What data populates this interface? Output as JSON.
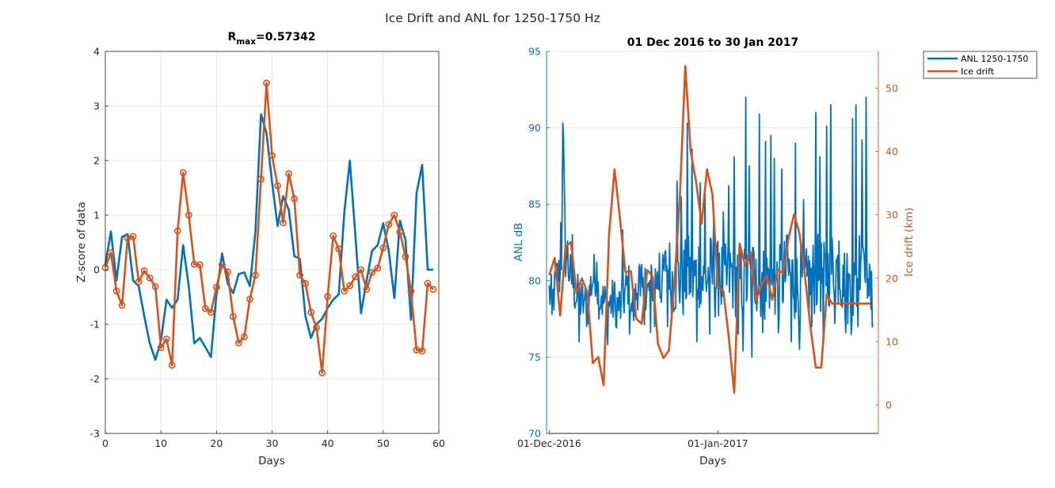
{
  "figure": {
    "suptitle": "Ice Drift and ANL for 1250-1750 Hz"
  },
  "colors": {
    "blue": "#0072BD",
    "orange": "#D95319",
    "grid": "#e0e0e0",
    "axis": "#262626"
  },
  "chart_data": [
    {
      "type": "line",
      "title_main": "R",
      "title_sub": "max",
      "title_rest": "=0.57342",
      "xlabel": "Days",
      "ylabel": "Z-score of data",
      "xlim": [
        0,
        60
      ],
      "ylim": [
        -3,
        4
      ],
      "xticks": [
        0,
        10,
        20,
        30,
        40,
        50,
        60
      ],
      "yticks": [
        -3,
        -2,
        -1,
        0,
        1,
        2,
        3,
        4
      ],
      "grid": true,
      "series": [
        {
          "color": "blue",
          "markers": false,
          "x": [
            0,
            1,
            2,
            3,
            4,
            5,
            6,
            7,
            8,
            9,
            10,
            11,
            12,
            13,
            14,
            15,
            16,
            17,
            18,
            19,
            20,
            21,
            22,
            23,
            24,
            25,
            26,
            27,
            28,
            29,
            30,
            31,
            32,
            33,
            34,
            35,
            36,
            37,
            38,
            39,
            40,
            41,
            42,
            43,
            44,
            45,
            46,
            47,
            48,
            49,
            50,
            51,
            52,
            53,
            54,
            55,
            56,
            57,
            58,
            59
          ],
          "y": [
            0.1,
            0.7,
            -0.2,
            0.6,
            0.65,
            -0.2,
            -0.3,
            -0.85,
            -1.35,
            -1.65,
            -1.3,
            -0.55,
            -0.7,
            -0.55,
            0.45,
            -0.3,
            -1.35,
            -1.25,
            -1.42,
            -1.6,
            -0.45,
            0.3,
            -0.25,
            -0.43,
            -0.08,
            -0.05,
            -0.3,
            0.7,
            2.85,
            2.5,
            1.6,
            0.8,
            1.35,
            1.1,
            0.25,
            0.2,
            -0.85,
            -1.25,
            -1.0,
            -0.9,
            -0.7,
            -0.55,
            -0.45,
            1.05,
            2.0,
            0.6,
            -0.8,
            -0.2,
            0.35,
            0.45,
            0.85,
            0.35,
            -0.52,
            0.9,
            0.55,
            -0.92,
            1.4,
            1.92,
            0.0,
            0.0
          ]
        },
        {
          "color": "orange",
          "markers": true,
          "x": [
            0,
            1,
            2,
            3,
            4,
            5,
            6,
            7,
            8,
            9,
            10,
            11,
            12,
            13,
            14,
            15,
            16,
            17,
            18,
            19,
            20,
            21,
            22,
            23,
            24,
            25,
            26,
            27,
            28,
            29,
            30,
            31,
            32,
            33,
            34,
            35,
            36,
            37,
            38,
            39,
            40,
            41,
            42,
            43,
            44,
            45,
            46,
            47,
            48,
            49,
            50,
            51,
            52,
            53,
            54,
            55,
            56,
            57,
            58,
            59
          ],
          "y": [
            0.04,
            0.31,
            -0.39,
            -0.65,
            0.58,
            0.61,
            -0.22,
            -0.02,
            -0.15,
            -0.31,
            -1.43,
            -1.27,
            -1.75,
            0.71,
            1.78,
            1.0,
            0.1,
            0.09,
            -0.71,
            -0.78,
            -0.32,
            0.09,
            -0.04,
            -0.86,
            -1.34,
            -1.23,
            -0.54,
            -0.1,
            1.66,
            3.42,
            2.09,
            1.54,
            0.86,
            1.76,
            1.3,
            -0.1,
            -0.25,
            -0.78,
            -1.06,
            -1.89,
            -0.49,
            0.62,
            0.38,
            -0.39,
            -0.29,
            -0.13,
            0.0,
            -0.36,
            -0.05,
            0.03,
            0.4,
            0.83,
            1.0,
            0.69,
            0.24,
            -0.39,
            -1.47,
            -1.49,
            -0.25,
            -0.36
          ]
        }
      ]
    },
    {
      "type": "line",
      "title": "01 Dec 2016 to 30 Jan 2017",
      "xlabel": "Days",
      "ylabel_left": "ANL dB",
      "ylabel_right": "Ice drift (km)",
      "xlim": [
        "2016-11-30T12:00",
        "2017-01-30T12:00"
      ],
      "xticks": [
        {
          "label": "01-Dec-2016",
          "date": "2016-12-01"
        },
        {
          "label": "01-Jan-2017",
          "date": "2017-01-01"
        }
      ],
      "ylim_left": [
        70,
        95
      ],
      "yticks_left": [
        70,
        75,
        80,
        85,
        90,
        95
      ],
      "ylim_right": [
        -4.5,
        55.8
      ],
      "yticks_right": [
        0,
        10,
        20,
        30,
        40,
        50
      ],
      "grid": "horizontal",
      "legend_position": "top-right",
      "legend": [
        "ANL 1250-1750",
        "Ice drift"
      ],
      "series": [
        {
          "name": "ANL 1250-1750",
          "color": "blue",
          "axis": "left",
          "dense": true,
          "start_date": "2016-12-01",
          "end_date": "2017-01-30",
          "anchors": [
            [
              0,
              79.2
            ],
            [
              0.6,
              78.6
            ],
            [
              1.6,
              80.5
            ],
            [
              2.2,
              80.0
            ],
            [
              2.5,
              89.4
            ],
            [
              3.0,
              81.5
            ],
            [
              4.0,
              80.2
            ],
            [
              5.0,
              79.0
            ],
            [
              6.0,
              78.6
            ],
            [
              7.0,
              78.2
            ],
            [
              7.7,
              79.8
            ],
            [
              8.5,
              80.5
            ],
            [
              9.2,
              78.9
            ],
            [
              10.5,
              78.4
            ],
            [
              12.0,
              78.6
            ],
            [
              13.2,
              78.2
            ],
            [
              14.5,
              79.8
            ],
            [
              15.5,
              78.0
            ],
            [
              16.5,
              80.2
            ],
            [
              17.5,
              78.7
            ],
            [
              18.5,
              79.5
            ],
            [
              19.5,
              80.2
            ],
            [
              20.5,
              79.6
            ],
            [
              21.5,
              81.2
            ],
            [
              22.5,
              80.0
            ],
            [
              23.5,
              80.2
            ],
            [
              24.5,
              79.8
            ],
            [
              25.5,
              80.5
            ],
            [
              26.5,
              80.0
            ],
            [
              27.5,
              80.8
            ],
            [
              28.5,
              79.8
            ],
            [
              29.5,
              80.6
            ],
            [
              30.5,
              80.0
            ],
            [
              31.5,
              80.2
            ],
            [
              32.5,
              79.8
            ],
            [
              33.5,
              80.5
            ],
            [
              34.5,
              80.0
            ],
            [
              35.5,
              80.0
            ],
            [
              36.5,
              79.8
            ],
            [
              37.5,
              80.5
            ],
            [
              38.5,
              80.0
            ],
            [
              39.5,
              79.8
            ],
            [
              40.5,
              80.2
            ],
            [
              41.5,
              79.8
            ],
            [
              42.5,
              79.8
            ],
            [
              43.5,
              80.5
            ],
            [
              44.5,
              80.4
            ],
            [
              45.5,
              79.6
            ],
            [
              46.5,
              79.8
            ],
            [
              47.5,
              79.5
            ],
            [
              48.5,
              80.2
            ],
            [
              49.5,
              80.5
            ],
            [
              50.5,
              80.0
            ],
            [
              51.5,
              80.8
            ],
            [
              52.5,
              81.0
            ],
            [
              53.5,
              80.6
            ],
            [
              54.5,
              79.8
            ],
            [
              55.5,
              79.0
            ],
            [
              56.5,
              79.8
            ],
            [
              57.5,
              83.2
            ],
            [
              58.5,
              80.2
            ],
            [
              59.0,
              79.5
            ],
            [
              59.5,
              78.0
            ]
          ],
          "peaks": [
            [
              0.5,
              77.8
            ],
            [
              1.3,
              81.0
            ],
            [
              2.1,
              83.8
            ],
            [
              2.6,
              89.4
            ],
            [
              3.4,
              82.6
            ],
            [
              4.2,
              83.0
            ],
            [
              5.5,
              76.0
            ],
            [
              6.5,
              78.8
            ],
            [
              7.2,
              77.3
            ],
            [
              8.8,
              81.2
            ],
            [
              9.6,
              79.0
            ],
            [
              10.8,
              75.8
            ],
            [
              12.3,
              77.0
            ],
            [
              13.5,
              83.3
            ],
            [
              14.8,
              76.5
            ],
            [
              15.2,
              78.0
            ],
            [
              16.8,
              79.0
            ],
            [
              17.6,
              80.8
            ],
            [
              18.6,
              76.6
            ],
            [
              19.4,
              77.0
            ],
            [
              20.3,
              81.8
            ],
            [
              21.7,
              77.0
            ],
            [
              22.4,
              79.0
            ],
            [
              23.5,
              86.5
            ],
            [
              24.2,
              85.5
            ],
            [
              25.4,
              90.3
            ],
            [
              26.3,
              88.6
            ],
            [
              27.1,
              76.0
            ],
            [
              27.8,
              86.4
            ],
            [
              28.6,
              85.6
            ],
            [
              29.5,
              76.5
            ],
            [
              30.2,
              84.0
            ],
            [
              31.3,
              81.8
            ],
            [
              32.0,
              84.5
            ],
            [
              33.0,
              86.2
            ],
            [
              34.0,
              88.1
            ],
            [
              34.8,
              76.5
            ],
            [
              35.6,
              75.4
            ],
            [
              36.1,
              92.0
            ],
            [
              36.8,
              87.5
            ],
            [
              37.3,
              75.0
            ],
            [
              38.0,
              81.4
            ],
            [
              38.6,
              90.9
            ],
            [
              39.2,
              76.6
            ],
            [
              39.8,
              89.1
            ],
            [
              40.7,
              89.5
            ],
            [
              41.4,
              88.0
            ],
            [
              42.1,
              76.6
            ],
            [
              42.8,
              87.3
            ],
            [
              43.7,
              83.0
            ],
            [
              44.5,
              76.0
            ],
            [
              45.3,
              89.0
            ],
            [
              46.0,
              75.5
            ],
            [
              46.8,
              85.3
            ],
            [
              47.6,
              81.6
            ],
            [
              48.3,
              77.0
            ],
            [
              49.0,
              91.0
            ],
            [
              49.8,
              88.1
            ],
            [
              50.4,
              76.2
            ],
            [
              51.0,
              90.1
            ],
            [
              51.7,
              91.5
            ],
            [
              52.5,
              77.2
            ],
            [
              53.3,
              82.6
            ],
            [
              54.0,
              81.0
            ],
            [
              54.5,
              76.6
            ],
            [
              55.2,
              80.4
            ],
            [
              55.7,
              90.6
            ],
            [
              56.4,
              91.5
            ],
            [
              56.8,
              77.0
            ],
            [
              57.5,
              89.2
            ],
            [
              58.2,
              92.0
            ],
            [
              58.7,
              79.0
            ],
            [
              59.3,
              80.6
            ]
          ]
        },
        {
          "name": "Ice drift",
          "color": "orange",
          "axis": "right",
          "x_days": [
            0,
            1,
            2,
            3,
            4,
            5,
            6,
            7,
            8,
            9,
            10,
            11,
            12,
            13,
            14,
            15,
            16,
            17,
            18,
            19,
            20,
            21,
            22,
            23,
            24,
            25,
            26,
            27,
            28,
            29,
            30,
            31,
            32,
            33,
            34,
            35,
            36,
            37,
            38,
            39,
            40,
            41,
            42,
            43,
            44,
            45,
            46,
            47,
            48,
            49,
            50,
            51,
            52,
            53,
            54,
            55,
            56,
            57,
            58,
            59
          ],
          "y": [
            20.5,
            23.2,
            14.1,
            25.0,
            25.7,
            17.6,
            20.0,
            17.8,
            6.6,
            7.6,
            3.1,
            27.0,
            37.2,
            29.5,
            21.0,
            21.1,
            13.6,
            12.8,
            21.3,
            20.3,
            9.6,
            7.4,
            8.6,
            19.1,
            32.7,
            53.5,
            40.0,
            35.2,
            28.6,
            37.2,
            33.2,
            18.7,
            18.0,
            10.7,
            1.9,
            25.5,
            22.0,
            24.1,
            16.5,
            18.8,
            20.4,
            16.6,
            21.4,
            20.7,
            26.4,
            30.1,
            27.1,
            20.4,
            12.4,
            5.9,
            5.9,
            17.4,
            16.0,
            16.0,
            16.0,
            16.0,
            16.0,
            16.0,
            16.0,
            16.0
          ]
        }
      ]
    }
  ]
}
